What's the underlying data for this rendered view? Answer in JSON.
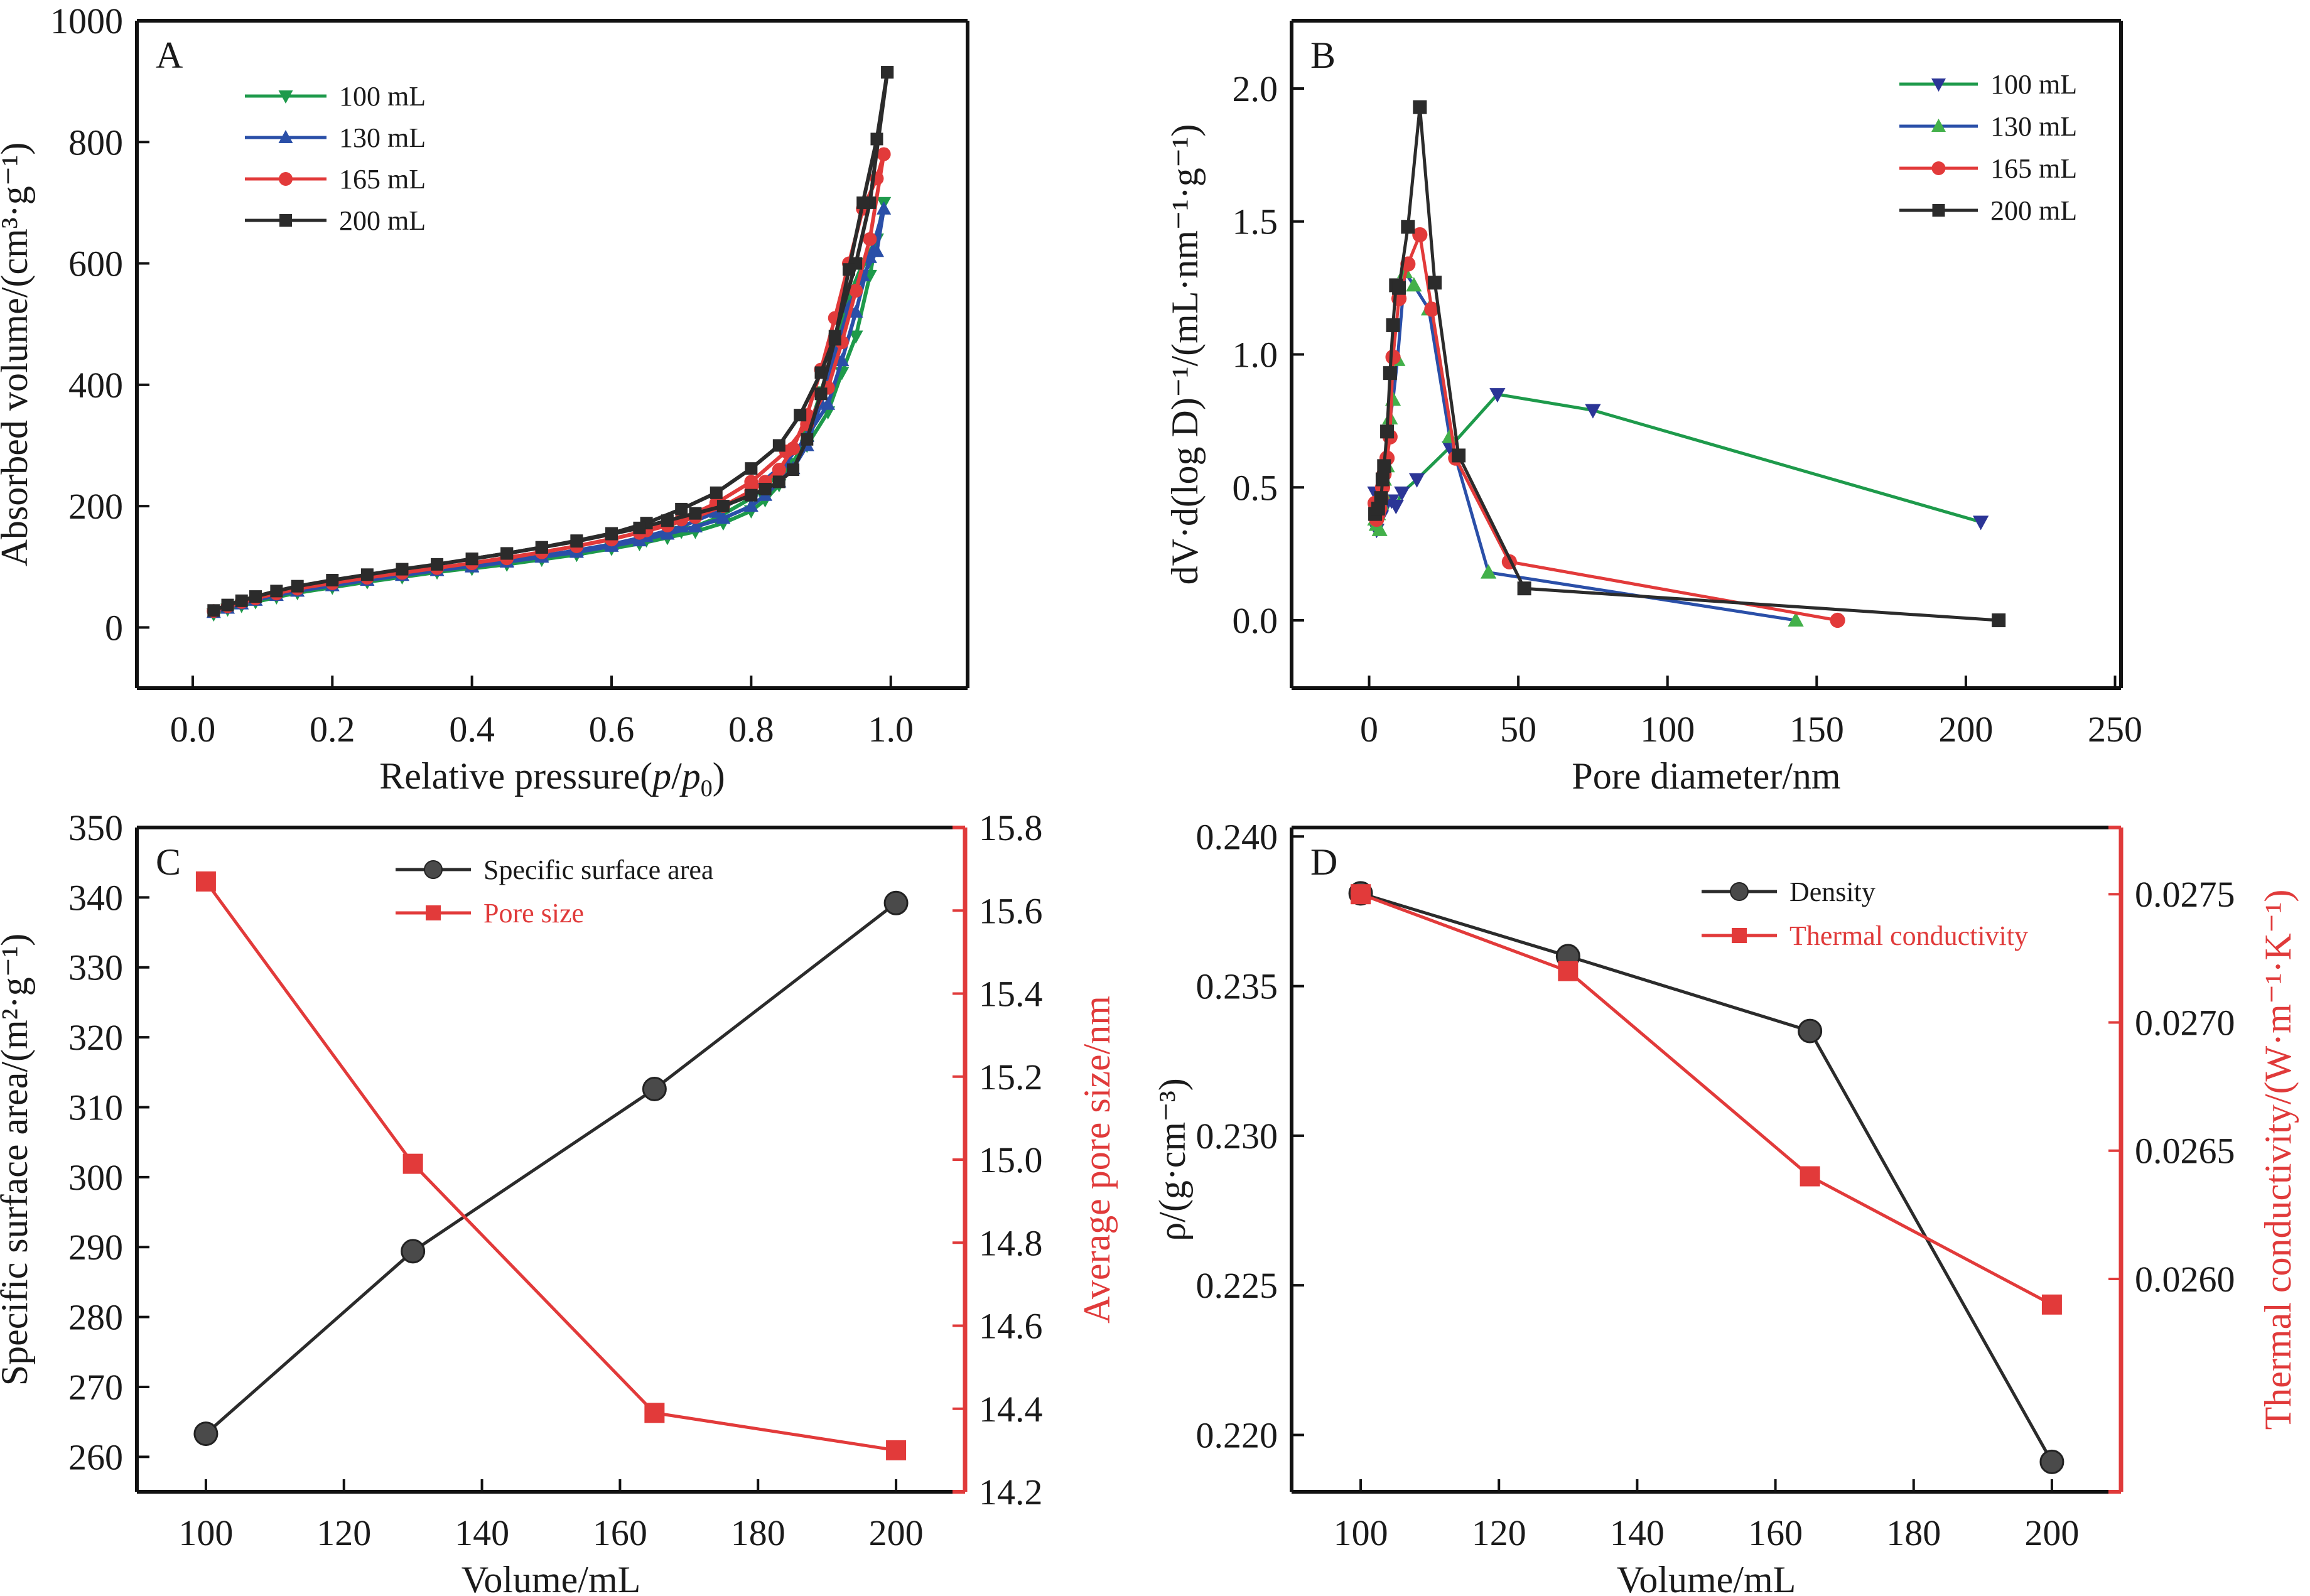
{
  "figure": {
    "panels": [
      "A",
      "B",
      "C",
      "D"
    ]
  },
  "colors": {
    "green": "#1e9a4b",
    "blue": "#2a4fa8",
    "navy": "#2b3596",
    "lightgreen": "#43b04a",
    "red": "#e23a3a",
    "black": "#2b2b2b",
    "axis": "#111111",
    "red_axis": "#e03a3a"
  },
  "chart_data": [
    {
      "id": "A",
      "type": "line",
      "title": "",
      "panel_label": "A",
      "xlabel": "Relative pressure(p/p0)",
      "xlabel_parts": [
        "Relative pressure(",
        "p",
        "/",
        "p",
        "0",
        ")"
      ],
      "ylabel": "Absorbed volume/(cm³·g⁻¹)",
      "xlim": [
        -0.08,
        1.11
      ],
      "ylim": [
        -100,
        1000
      ],
      "xticks": [
        0.0,
        0.2,
        0.4,
        0.6,
        0.8,
        1.0
      ],
      "xtick_labels": [
        "0.0",
        "0.2",
        "0.4",
        "0.6",
        "0.8",
        "1.0"
      ],
      "yticks": [
        0,
        200,
        400,
        600,
        800,
        1000
      ],
      "ytick_labels": [
        "0",
        "200",
        "400",
        "600",
        "800",
        "1000"
      ],
      "grid": false,
      "legend_position": "top-left",
      "series": [
        {
          "name": "100 mL",
          "color": "green",
          "marker": "triangle-down",
          "marker_color": "green",
          "adsorption": {
            "x": [
              0.03,
              0.05,
              0.07,
              0.09,
              0.12,
              0.15,
              0.2,
              0.25,
              0.3,
              0.35,
              0.4,
              0.45,
              0.5,
              0.55,
              0.6,
              0.65,
              0.7,
              0.75,
              0.8,
              0.85,
              0.88,
              0.91,
              0.93,
              0.95,
              0.97,
              0.99
            ],
            "y": [
              22,
              30,
              36,
              42,
              50,
              57,
              66,
              75,
              83,
              91,
              98,
              106,
              114,
              123,
              132,
              144,
              158,
              180,
              213,
              262,
              300,
              355,
              420,
              480,
              580,
              700
            ]
          },
          "desorption": {
            "x": [
              0.99,
              0.98,
              0.96,
              0.94,
              0.92,
              0.9,
              0.88,
              0.86,
              0.84,
              0.82,
              0.8,
              0.76,
              0.72,
              0.68,
              0.64,
              0.6,
              0.55,
              0.5,
              0.45,
              0.4
            ],
            "y": [
              700,
              640,
              600,
              545,
              465,
              388,
              318,
              270,
              235,
              210,
              192,
              172,
              158,
              148,
              138,
              130,
              120,
              112,
              104,
              97
            ]
          }
        },
        {
          "name": "130 mL",
          "color": "blue",
          "marker": "triangle-up",
          "marker_color": "blue",
          "adsorption": {
            "x": [
              0.03,
              0.05,
              0.07,
              0.09,
              0.12,
              0.15,
              0.2,
              0.25,
              0.3,
              0.35,
              0.4,
              0.45,
              0.5,
              0.55,
              0.6,
              0.65,
              0.7,
              0.75,
              0.8,
              0.85,
              0.88,
              0.91,
              0.93,
              0.95,
              0.97,
              0.99
            ],
            "y": [
              25,
              32,
              39,
              45,
              53,
              60,
              69,
              78,
              86,
              94,
              101,
              109,
              118,
              127,
              137,
              150,
              166,
              190,
              225,
              272,
              315,
              368,
              440,
              520,
              610,
              690
            ]
          },
          "desorption": {
            "x": [
              0.99,
              0.98,
              0.96,
              0.94,
              0.92,
              0.9,
              0.88,
              0.86,
              0.84,
              0.82,
              0.8,
              0.76,
              0.72,
              0.68,
              0.64,
              0.6,
              0.55,
              0.5,
              0.45,
              0.4
            ],
            "y": [
              690,
              620,
              580,
              528,
              450,
              370,
              300,
              262,
              240,
              218,
              200,
              180,
              166,
              154,
              143,
              134,
              124,
              116,
              108,
              100
            ]
          }
        },
        {
          "name": "165 mL",
          "color": "red",
          "marker": "circle",
          "marker_color": "red",
          "adsorption": {
            "x": [
              0.03,
              0.05,
              0.07,
              0.09,
              0.12,
              0.15,
              0.2,
              0.25,
              0.3,
              0.35,
              0.4,
              0.45,
              0.5,
              0.55,
              0.6,
              0.65,
              0.7,
              0.75,
              0.8,
              0.85,
              0.88,
              0.91,
              0.93,
              0.95,
              0.97,
              0.99
            ],
            "y": [
              27,
              35,
              42,
              48,
              56,
              64,
              73,
              82,
              90,
              98,
              106,
              114,
              124,
              134,
              145,
              160,
              178,
              205,
              240,
              290,
              335,
              395,
              470,
              555,
              640,
              780
            ]
          },
          "desorption": {
            "x": [
              0.99,
              0.98,
              0.96,
              0.94,
              0.92,
              0.9,
              0.88,
              0.86,
              0.84,
              0.82,
              0.8,
              0.76,
              0.72,
              0.68,
              0.64,
              0.6,
              0.55,
              0.5,
              0.45,
              0.4
            ],
            "y": [
              780,
              740,
              690,
              600,
              510,
              425,
              350,
              295,
              260,
              240,
              225,
              200,
              182,
              168,
              156,
              146,
              134,
              124,
              115,
              106
            ]
          }
        },
        {
          "name": "200 mL",
          "color": "black",
          "marker": "square",
          "marker_color": "black",
          "adsorption": {
            "x": [
              0.03,
              0.05,
              0.07,
              0.09,
              0.12,
              0.15,
              0.2,
              0.25,
              0.3,
              0.35,
              0.4,
              0.45,
              0.5,
              0.55,
              0.6,
              0.65,
              0.7,
              0.75,
              0.8,
              0.84,
              0.87,
              0.9,
              0.92,
              0.95,
              0.97,
              0.995
            ],
            "y": [
              28,
              37,
              44,
              51,
              60,
              68,
              78,
              87,
              96,
              104,
              113,
              122,
              132,
              143,
              155,
              172,
              195,
              222,
              262,
              300,
              350,
              420,
              480,
              600,
              700,
              915
            ]
          },
          "desorption": {
            "x": [
              0.995,
              0.98,
              0.96,
              0.94,
              0.92,
              0.9,
              0.88,
              0.86,
              0.84,
              0.82,
              0.8,
              0.76,
              0.72,
              0.68,
              0.64,
              0.6,
              0.55,
              0.5,
              0.45,
              0.4
            ],
            "y": [
              915,
              805,
              700,
              590,
              475,
              385,
              310,
              260,
              240,
              228,
              218,
              200,
              188,
              176,
              164,
              154,
              142,
              132,
              122,
              113
            ]
          }
        }
      ]
    },
    {
      "id": "B",
      "type": "line",
      "title": "",
      "panel_label": "B",
      "xlabel": "Pore diameter/nm",
      "ylabel": "dV·d(log D)⁻¹/(mL·nm⁻¹·g⁻¹)",
      "xlim": [
        -26,
        252
      ],
      "ylim": [
        -0.255,
        2.255
      ],
      "xticks": [
        0,
        50,
        100,
        150,
        200,
        250
      ],
      "xtick_labels": [
        "0",
        "50",
        "100",
        "150",
        "200",
        "250"
      ],
      "yticks": [
        0.0,
        0.5,
        1.0,
        1.5,
        2.0
      ],
      "ytick_labels": [
        "0.0",
        "0.5",
        "1.0",
        "1.5",
        "2.0"
      ],
      "grid": false,
      "legend_position": "top-right",
      "series": [
        {
          "name": "100 mL",
          "color": "green",
          "marker": "triangle-down",
          "marker_color": "navy",
          "x": [
            2.0,
            2.5,
            3.0,
            3.5,
            4.0,
            4.5,
            5.0,
            6.0,
            7.5,
            9.0,
            11.0,
            16.0,
            27.0,
            43.0,
            75.0,
            205.0
          ],
          "y": [
            0.48,
            0.34,
            0.4,
            0.45,
            0.39,
            0.41,
            0.42,
            0.44,
            0.45,
            0.43,
            0.48,
            0.53,
            0.65,
            0.85,
            0.79,
            0.37
          ]
        },
        {
          "name": "130 mL",
          "color": "blue",
          "marker": "triangle-up",
          "marker_color": "lightgreen",
          "x": [
            2.0,
            2.5,
            3.0,
            3.5,
            4.0,
            4.5,
            5.0,
            6.0,
            7.0,
            8.0,
            9.5,
            12.0,
            15.0,
            20.0,
            27.0,
            40.0,
            143.0
          ],
          "y": [
            0.38,
            0.36,
            0.4,
            0.34,
            0.44,
            0.48,
            0.53,
            0.58,
            0.76,
            0.83,
            0.98,
            1.31,
            1.26,
            1.17,
            0.69,
            0.18,
            0.0
          ]
        },
        {
          "name": "165 mL",
          "color": "red",
          "marker": "circle",
          "marker_color": "red",
          "x": [
            2.0,
            2.5,
            3.0,
            3.5,
            4.0,
            4.5,
            5.0,
            6.0,
            7.0,
            8.0,
            10.0,
            13.0,
            17.0,
            21.0,
            29.0,
            47.0,
            157.0
          ],
          "y": [
            0.44,
            0.38,
            0.4,
            0.42,
            0.46,
            0.5,
            0.55,
            0.61,
            0.69,
            0.99,
            1.21,
            1.34,
            1.45,
            1.17,
            0.61,
            0.22,
            0.0
          ]
        },
        {
          "name": "200 mL",
          "color": "black",
          "marker": "square",
          "marker_color": "black",
          "x": [
            2.0,
            3.0,
            4.0,
            4.5,
            5.0,
            6.0,
            7.0,
            8.0,
            9.0,
            10.0,
            13.0,
            17.0,
            22.0,
            30.0,
            52.0,
            211.0
          ],
          "y": [
            0.4,
            0.42,
            0.46,
            0.53,
            0.58,
            0.71,
            0.93,
            1.11,
            1.26,
            1.25,
            1.48,
            1.93,
            1.27,
            0.62,
            0.12,
            0.0
          ]
        }
      ]
    },
    {
      "id": "C",
      "type": "line",
      "title": "",
      "panel_label": "C",
      "xlabel": "Volume/mL",
      "ylabel": "Specific surface area/(m²·g⁻¹)",
      "y2label": "Average pore size/nm",
      "xlim": [
        90,
        210
      ],
      "ylim": [
        255,
        350
      ],
      "y2lim": [
        14.2,
        15.8
      ],
      "xticks": [
        100,
        120,
        140,
        160,
        180,
        200
      ],
      "xtick_labels": [
        "100",
        "120",
        "140",
        "160",
        "180",
        "200"
      ],
      "yticks": [
        260,
        270,
        280,
        290,
        300,
        310,
        320,
        330,
        340,
        350
      ],
      "ytick_labels": [
        "260",
        "270",
        "280",
        "290",
        "300",
        "310",
        "320",
        "330",
        "340",
        "350"
      ],
      "y2ticks": [
        14.2,
        14.4,
        14.6,
        14.8,
        15.0,
        15.2,
        15.4,
        15.6,
        15.8
      ],
      "y2tick_labels": [
        "14.2",
        "14.4",
        "14.6",
        "14.8",
        "15.0",
        "15.2",
        "15.4",
        "15.6",
        "15.8"
      ],
      "grid": false,
      "legend_position": "top-center",
      "categories": [
        100,
        130,
        165,
        200
      ],
      "series": [
        {
          "name": "Specific surface area",
          "axis": "left",
          "color": "black",
          "marker": "circle",
          "values": [
            263.3,
            289.4,
            312.6,
            339.2
          ]
        },
        {
          "name": "Pore size",
          "axis": "right",
          "color": "red",
          "marker": "square",
          "values": [
            15.67,
            14.99,
            14.39,
            14.3
          ]
        }
      ]
    },
    {
      "id": "D",
      "type": "line",
      "title": "",
      "panel_label": "D",
      "xlabel": "Volume/mL",
      "ylabel": "ρ/(g·cm⁻³)",
      "y2label": "Thermal conductivity/(W·m⁻¹·K⁻¹)",
      "xlim": [
        90,
        210
      ],
      "ylim": [
        0.2181,
        0.2403
      ],
      "y2lim": [
        0.02517,
        0.02776
      ],
      "xticks": [
        100,
        120,
        140,
        160,
        180,
        200
      ],
      "xtick_labels": [
        "100",
        "120",
        "140",
        "160",
        "180",
        "200"
      ],
      "yticks": [
        0.22,
        0.225,
        0.23,
        0.235,
        0.24
      ],
      "ytick_labels": [
        "0.220",
        "0.225",
        "0.230",
        "0.235",
        "0.240"
      ],
      "y2ticks": [
        0.026,
        0.0265,
        0.027,
        0.0275
      ],
      "y2tick_labels": [
        "0.0260",
        "0.0265",
        "0.0270",
        "0.0275"
      ],
      "grid": false,
      "legend_position": "top-right",
      "categories": [
        100,
        130,
        165,
        200
      ],
      "series": [
        {
          "name": "Density",
          "axis": "left",
          "color": "black",
          "marker": "circle",
          "values": [
            0.2381,
            0.236,
            0.2335,
            0.2191
          ]
        },
        {
          "name": "Thermal conductivity",
          "axis": "right",
          "color": "red",
          "marker": "square",
          "values": [
            0.0275,
            0.0272,
            0.0264,
            0.0259
          ]
        }
      ]
    }
  ]
}
